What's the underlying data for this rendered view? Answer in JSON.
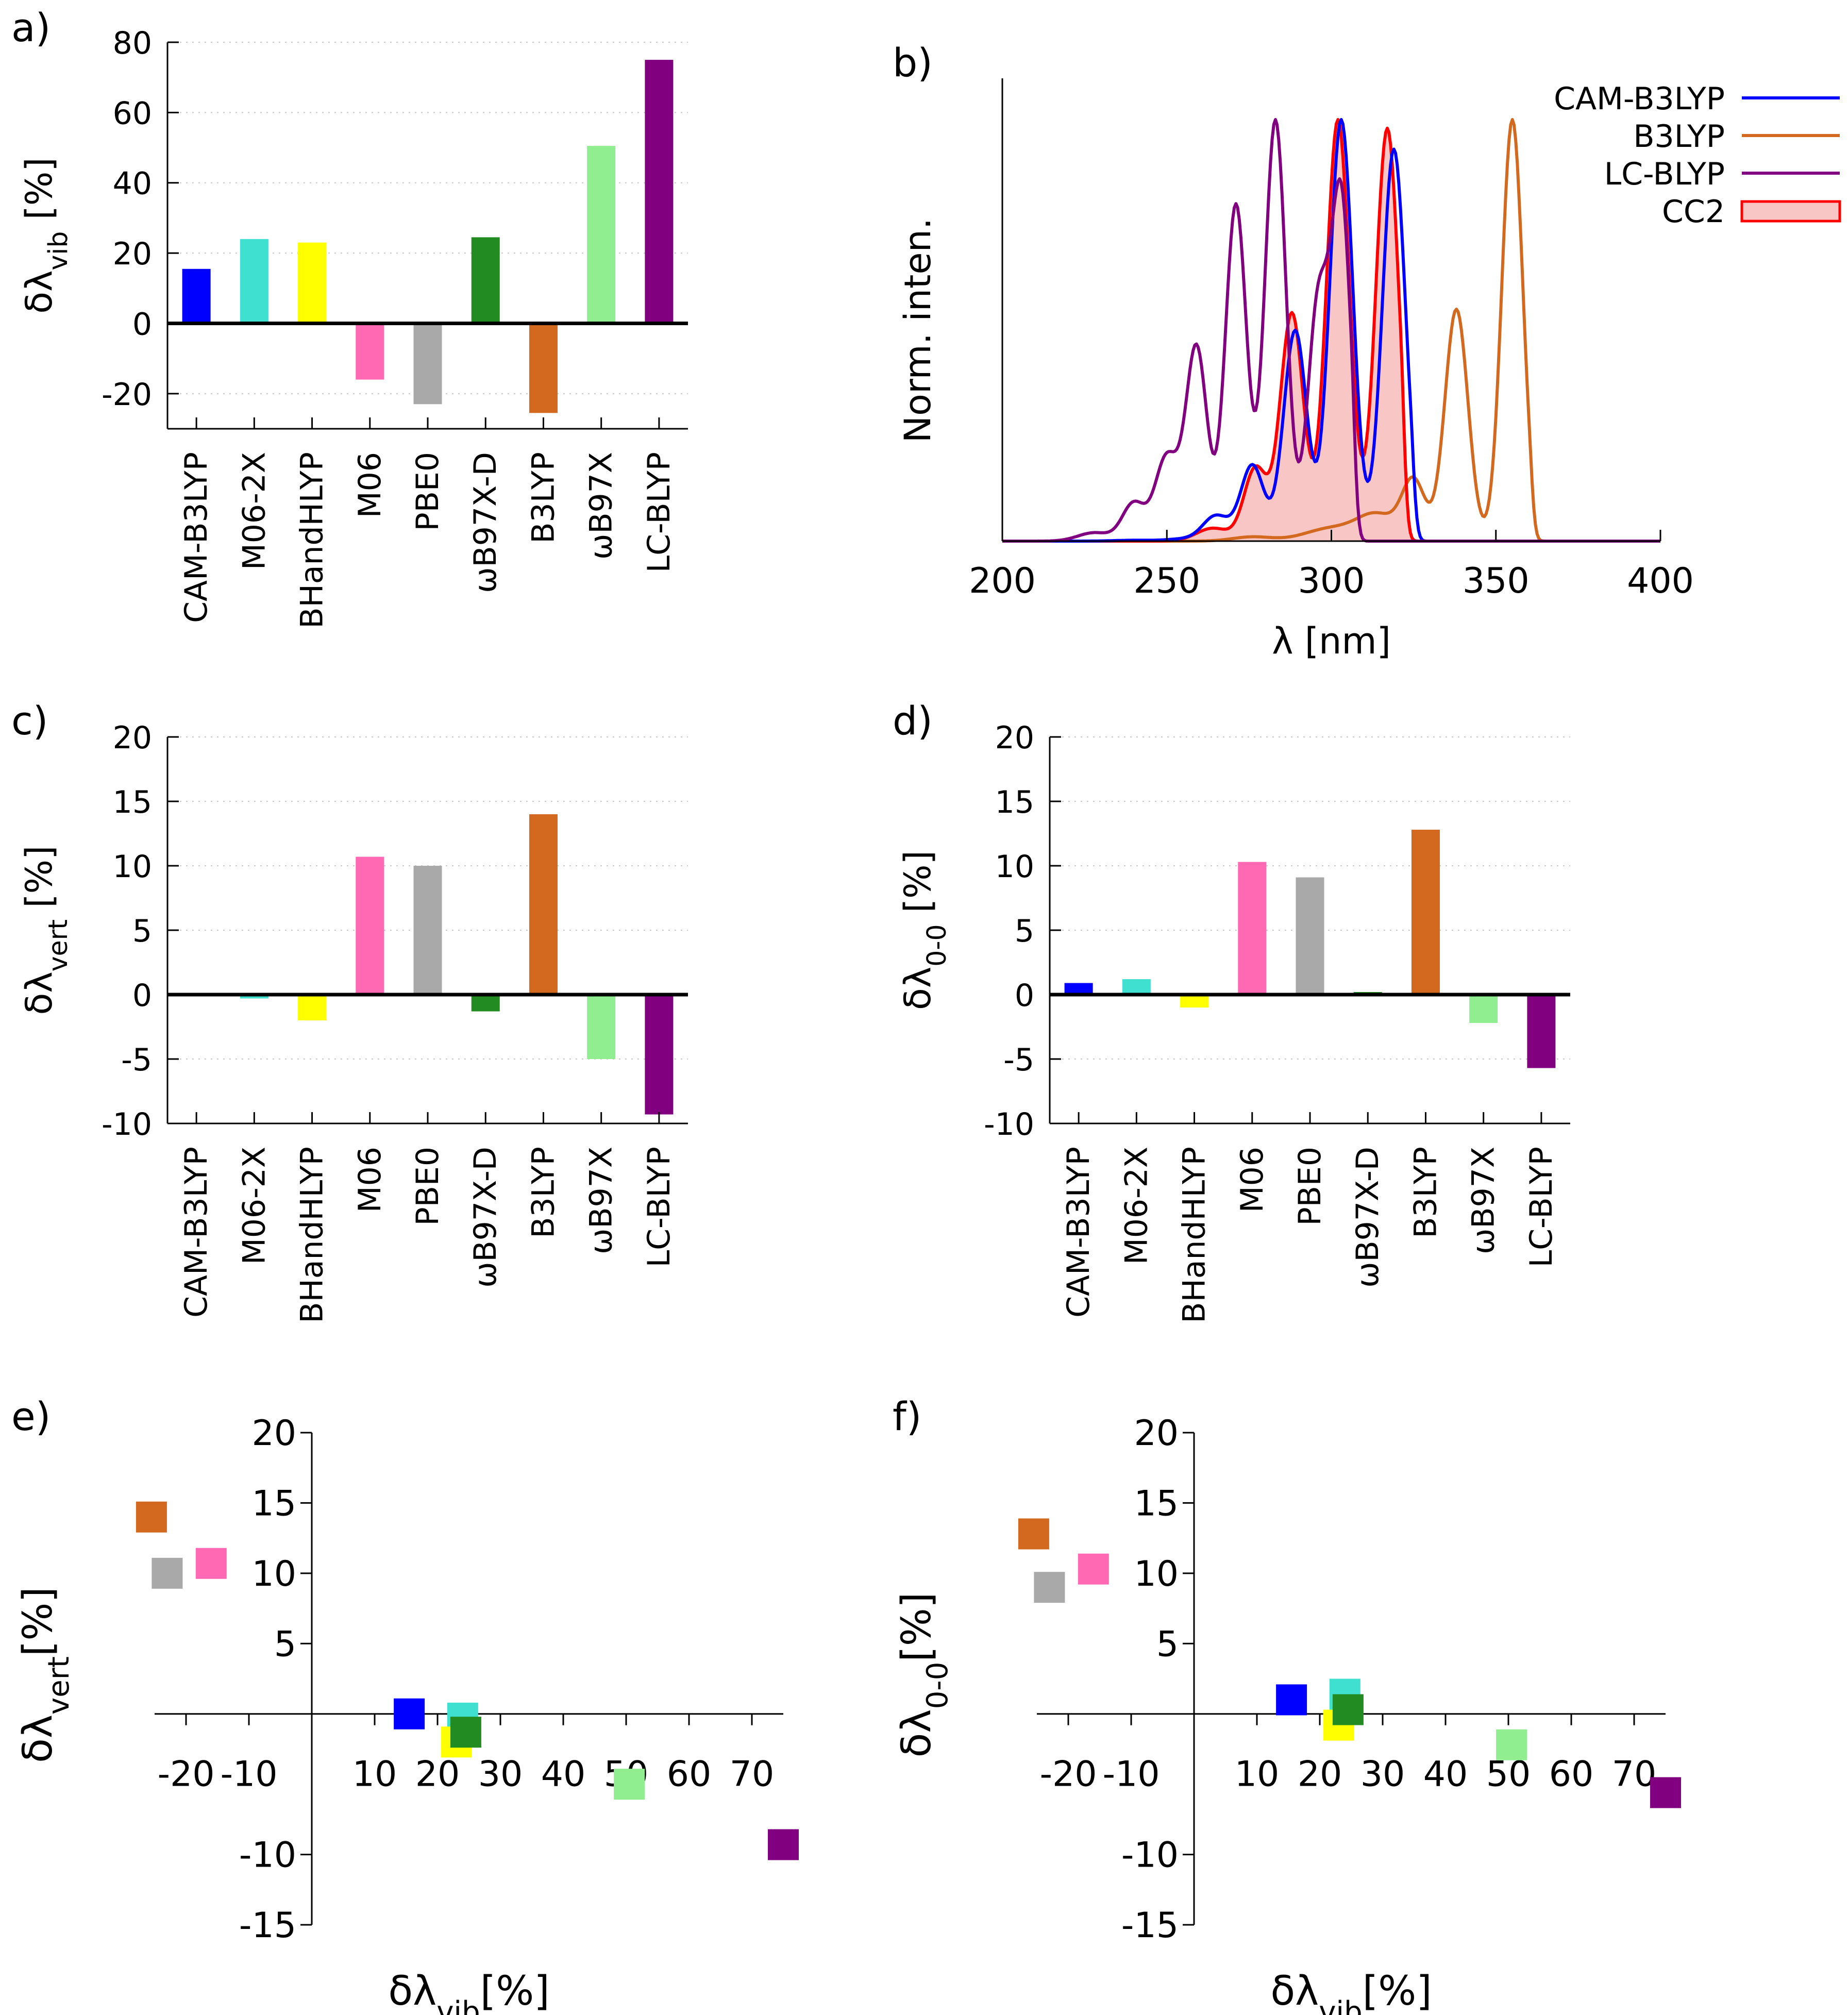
{
  "colors": {
    "CAM-B3LYP": "#0000ff",
    "M06-2X": "#40e0d0",
    "BHandHLYP": "#ffff00",
    "M06": "#ff69b4",
    "PBE0": "#a9a9a9",
    "ωB97X-D": "#228b22",
    "B3LYP": "#d2691e",
    "ωB97X": "#90ee90",
    "LC-BLYP": "#800080",
    "CC2": "#ff0000",
    "CC2_fill": "#f9c6c6"
  },
  "chart_data": [
    {
      "id": "a",
      "panel_label": "a)",
      "type": "bar",
      "ylabel_main": "δλ",
      "ylabel_sub": "vib",
      "ylabel_tail": " [%]",
      "categories": [
        "CAM-B3LYP",
        "M06-2X",
        "BHandHLYP",
        "M06",
        "PBE0",
        "ωB97X-D",
        "B3LYP",
        "ωB97X",
        "LC-BLYP"
      ],
      "values": [
        15.5,
        24,
        23,
        -16,
        -23,
        24.5,
        -25.5,
        50.5,
        75
      ],
      "ylim": [
        -30,
        80
      ],
      "yticks": [
        -20,
        0,
        20,
        40,
        60,
        80
      ],
      "tick_labels": [
        "-20",
        "0",
        "20",
        "40",
        "60",
        "80"
      ]
    },
    {
      "id": "b",
      "panel_label": "b)",
      "type": "line",
      "xlabel": "λ [nm]",
      "ylabel": "Norm. inten.",
      "xlim": [
        200,
        400
      ],
      "xticks": [
        200,
        250,
        300,
        350,
        400
      ],
      "tick_labels": [
        "200",
        "250",
        "300",
        "350",
        "400"
      ],
      "legend": [
        "CAM-B3LYP",
        "B3LYP",
        "LC-BLYP",
        "CC2"
      ],
      "series": [
        {
          "name": "CAM-B3LYP",
          "peaks": [
            [
              240,
              0.002,
              6
            ],
            [
              255,
              0.005,
              5
            ],
            [
              265,
              0.06,
              4
            ],
            [
              276,
              0.18,
              3.5
            ],
            [
              289,
              0.5,
              3.5
            ],
            [
              303,
              1.0,
              3.5
            ],
            [
              319,
              0.93,
              3.5
            ]
          ],
          "cutoff": 324
        },
        {
          "name": "B3LYP",
          "peaks": [
            [
              276,
              0.01,
              6
            ],
            [
              300,
              0.03,
              8
            ],
            [
              314,
              0.06,
              6
            ],
            [
              325,
              0.14,
              3.5
            ],
            [
              338,
              0.55,
              3.5
            ],
            [
              355,
              1.0,
              3.2
            ]
          ],
          "cutoff": 360
        },
        {
          "name": "LC-BLYP",
          "peaks": [
            [
              228,
              0.02,
              5
            ],
            [
              240,
              0.09,
              3.5
            ],
            [
              250,
              0.2,
              3.5
            ],
            [
              259,
              0.46,
              3.2
            ],
            [
              271,
              0.8,
              3.2
            ],
            [
              283,
              1.0,
              3.2
            ],
            [
              296,
              0.56,
              3.2
            ],
            [
              303,
              0.8,
              3
            ]
          ],
          "cutoff": 306
        },
        {
          "name": "CC2",
          "peaks": [
            [
              264,
              0.03,
              5
            ],
            [
              277,
              0.17,
              3.5
            ],
            [
              288,
              0.53,
              3.5
            ],
            [
              302,
              0.98,
              3.5
            ],
            [
              317,
              0.96,
              3.5
            ]
          ],
          "cutoff": 321
        }
      ]
    },
    {
      "id": "c",
      "panel_label": "c)",
      "type": "bar",
      "ylabel_main": "δλ",
      "ylabel_sub": "vert",
      "ylabel_tail": " [%]",
      "categories": [
        "CAM-B3LYP",
        "M06-2X",
        "BHandHLYP",
        "M06",
        "PBE0",
        "ωB97X-D",
        "B3LYP",
        "ωB97X",
        "LC-BLYP"
      ],
      "values": [
        0,
        -0.3,
        -2,
        10.7,
        10,
        -1.3,
        14,
        -5,
        -9.3
      ],
      "ylim": [
        -10,
        20
      ],
      "yticks": [
        -10,
        -5,
        0,
        5,
        10,
        15,
        20
      ],
      "tick_labels": [
        "-10",
        "-5",
        "0",
        "5",
        "10",
        "15",
        "20"
      ]
    },
    {
      "id": "d",
      "panel_label": "d)",
      "type": "bar",
      "ylabel_main": "δλ",
      "ylabel_sub": "0-0",
      "ylabel_tail": " [%]",
      "categories": [
        "CAM-B3LYP",
        "M06-2X",
        "BHandHLYP",
        "M06",
        "PBE0",
        "ωB97X-D",
        "B3LYP",
        "ωB97X",
        "LC-BLYP"
      ],
      "values": [
        0.9,
        1.2,
        -1,
        10.3,
        9.1,
        0.2,
        12.8,
        -2.2,
        -5.7
      ],
      "ylim": [
        -10,
        20
      ],
      "yticks": [
        -10,
        -5,
        0,
        5,
        10,
        15,
        20
      ],
      "tick_labels": [
        "-10",
        "-5",
        "0",
        "5",
        "10",
        "15",
        "20"
      ]
    },
    {
      "id": "e",
      "panel_label": "e)",
      "type": "scatter",
      "xlabel_main": "δλ",
      "xlabel_sub": "vib",
      "xlabel_tail": "[%]",
      "ylabel_main": "δλ",
      "ylabel_sub": "vert",
      "ylabel_tail": "[%]",
      "xlim": [
        -25,
        75
      ],
      "ylim": [
        -15,
        20
      ],
      "xticks": [
        -20,
        -10,
        10,
        20,
        30,
        40,
        50,
        60,
        70
      ],
      "xtick_labels": [
        "-20",
        "-10",
        "10",
        "20",
        "30",
        "40",
        "50",
        "60",
        "70"
      ],
      "yticks": [
        -15,
        -10,
        5,
        10,
        15,
        20
      ],
      "ytick_labels": [
        "-15",
        "-10",
        "5",
        "10",
        "15",
        "20"
      ],
      "points": [
        {
          "name": "CAM-B3LYP",
          "x": 15.5,
          "y": 0
        },
        {
          "name": "M06-2X",
          "x": 24,
          "y": -0.3
        },
        {
          "name": "BHandHLYP",
          "x": 23,
          "y": -2
        },
        {
          "name": "M06",
          "x": -16,
          "y": 10.7
        },
        {
          "name": "PBE0",
          "x": -23,
          "y": 10
        },
        {
          "name": "ωB97X-D",
          "x": 24.5,
          "y": -1.3
        },
        {
          "name": "B3LYP",
          "x": -25.5,
          "y": 14
        },
        {
          "name": "ωB97X",
          "x": 50.5,
          "y": -5
        },
        {
          "name": "LC-BLYP",
          "x": 75,
          "y": -9.3
        }
      ]
    },
    {
      "id": "f",
      "panel_label": "f)",
      "type": "scatter",
      "xlabel_main": "δλ",
      "xlabel_sub": "vib",
      "xlabel_tail": "[%]",
      "ylabel_main": "δλ",
      "ylabel_sub": "0-0",
      "ylabel_tail": "[%]",
      "xlim": [
        -25,
        75
      ],
      "ylim": [
        -15,
        20
      ],
      "xticks": [
        -20,
        -10,
        10,
        20,
        30,
        40,
        50,
        60,
        70
      ],
      "xtick_labels": [
        "-20",
        "-10",
        "10",
        "20",
        "30",
        "40",
        "50",
        "60",
        "70"
      ],
      "yticks": [
        -15,
        -10,
        5,
        10,
        15,
        20
      ],
      "ytick_labels": [
        "-15",
        "-10",
        "5",
        "10",
        "15",
        "20"
      ],
      "points": [
        {
          "name": "CAM-B3LYP",
          "x": 15.5,
          "y": 1
        },
        {
          "name": "M06-2X",
          "x": 24,
          "y": 1.4
        },
        {
          "name": "BHandHLYP",
          "x": 23,
          "y": -0.8
        },
        {
          "name": "M06",
          "x": -16,
          "y": 10.3
        },
        {
          "name": "PBE0",
          "x": -23,
          "y": 9
        },
        {
          "name": "ωB97X-D",
          "x": 24.5,
          "y": 0.3
        },
        {
          "name": "B3LYP",
          "x": -25.5,
          "y": 12.8
        },
        {
          "name": "ωB97X",
          "x": 50.5,
          "y": -2.2
        },
        {
          "name": "LC-BLYP",
          "x": 75,
          "y": -5.6
        }
      ]
    }
  ]
}
